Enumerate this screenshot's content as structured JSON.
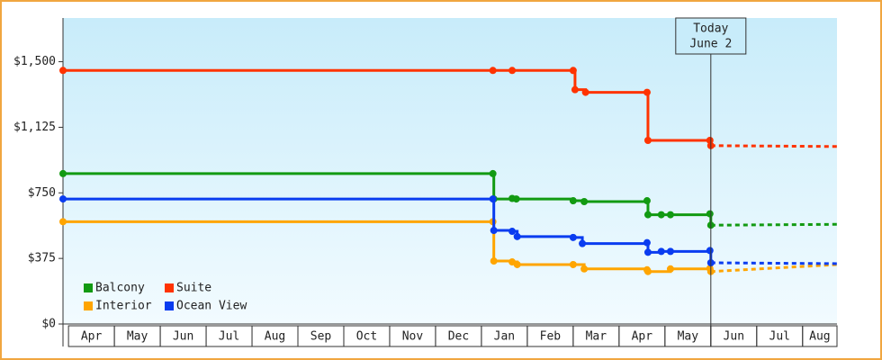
{
  "chart_data": {
    "type": "step-line",
    "categories": [
      "Apr",
      "May",
      "Jun",
      "Jul",
      "Aug",
      "Sep",
      "Oct",
      "Nov",
      "Dec",
      "Jan",
      "Feb",
      "Mar",
      "Apr",
      "May",
      "Jun",
      "Jul",
      "Aug"
    ],
    "xlim": [
      -0.12,
      16.75
    ],
    "ylim": [
      0,
      1750
    ],
    "yticks": [
      {
        "value": 0,
        "label": "$0"
      },
      {
        "value": 375,
        "label": "$375"
      },
      {
        "value": 750,
        "label": "$750"
      },
      {
        "value": 1125,
        "label": "$1,125"
      },
      {
        "value": 1500,
        "label": "$1,500"
      }
    ],
    "annotation": {
      "x": 14.0,
      "lines": [
        "Today",
        "June 2"
      ]
    },
    "legend": "lower left",
    "series": [
      {
        "name": "Balcony",
        "color": "#129a12",
        "x": [
          -0.12,
          9.25,
          9.27,
          9.67,
          9.76,
          11.0,
          11.24,
          12.61,
          12.63,
          12.92,
          13.12,
          13.98,
          14.0
        ],
        "values": [
          860,
          860,
          715,
          718,
          715,
          705,
          700,
          705,
          625,
          625,
          625,
          630,
          565
        ],
        "forecast_x": [
          14.0,
          16.75
        ],
        "forecast_values": [
          565,
          570
        ]
      },
      {
        "name": "Suite",
        "color": "#ff3300",
        "x": [
          -0.12,
          9.25,
          9.67,
          11.0,
          11.04,
          11.27,
          12.61,
          12.63,
          13.98,
          14.0
        ],
        "values": [
          1450,
          1450,
          1450,
          1450,
          1340,
          1325,
          1325,
          1050,
          1050,
          1020
        ],
        "forecast_x": [
          14.0,
          16.75
        ],
        "forecast_values": [
          1020,
          1015
        ]
      },
      {
        "name": "Interior",
        "color": "#ffa500",
        "x": [
          -0.12,
          9.25,
          9.27,
          9.67,
          9.78,
          11.0,
          11.24,
          12.61,
          12.63,
          13.12,
          13.98,
          14.0
        ],
        "values": [
          585,
          585,
          360,
          355,
          340,
          340,
          315,
          310,
          300,
          315,
          318,
          300
        ],
        "forecast_x": [
          14.0,
          16.75
        ],
        "forecast_values": [
          300,
          340
        ]
      },
      {
        "name": "Ocean View",
        "color": "#0a3cf0",
        "x": [
          -0.12,
          9.25,
          9.27,
          9.67,
          9.78,
          11.0,
          11.2,
          12.61,
          12.63,
          12.92,
          13.12,
          13.98,
          14.0
        ],
        "values": [
          715,
          715,
          535,
          530,
          500,
          495,
          460,
          465,
          410,
          415,
          415,
          420,
          350
        ],
        "forecast_x": [
          14.0,
          16.75
        ],
        "forecast_values": [
          350,
          345
        ]
      }
    ]
  }
}
